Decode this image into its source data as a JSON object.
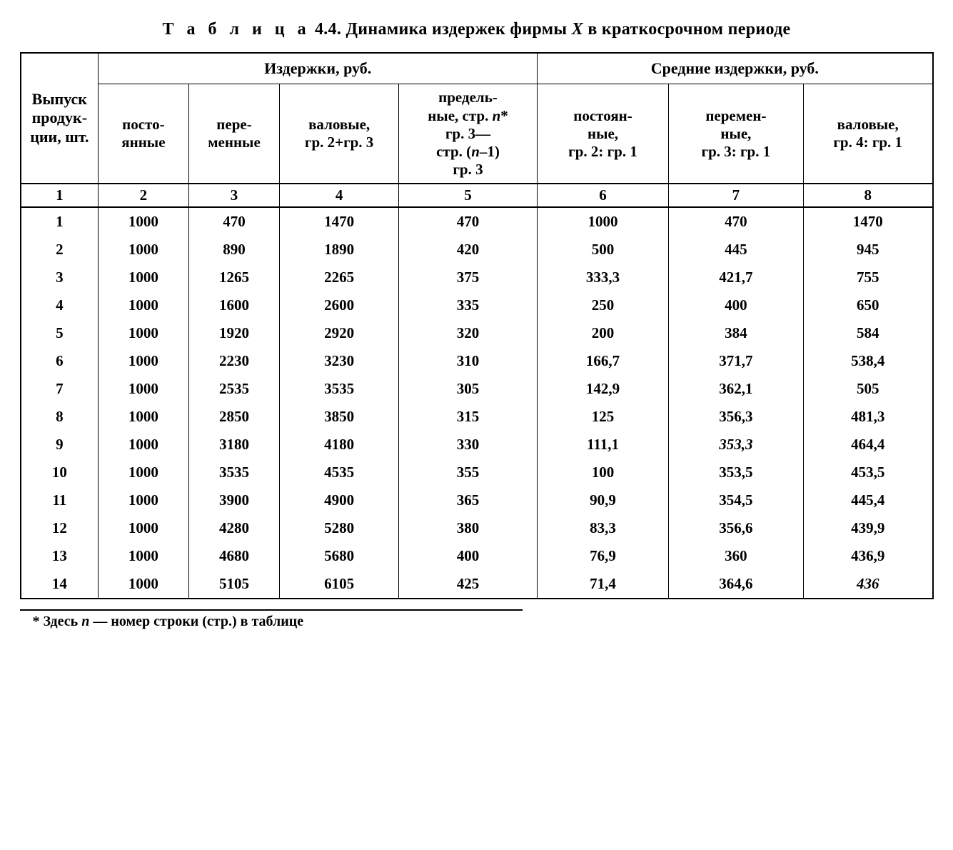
{
  "caption": {
    "label_spaced": "Т а б л и ц а",
    "number": "4.4.",
    "rest_before": "Динамика издержек фирмы",
    "var": "X",
    "rest_after": "в краткосрочном периоде"
  },
  "headers": {
    "col1": "Выпуск продук-\nции, шт.",
    "group_cost": "Издержки, руб.",
    "group_avg": "Средние издержки, руб.",
    "col2": "посто-\nянные",
    "col3": "пере-\nменные",
    "col4": "валовые,\nгр. 2+гр. 3",
    "col5": "предель-\nные, стр. n*\nгр. 3—\nстр. (n–1)\nгр. 3",
    "col6": "постоян-\nные,\nгр. 2: гр. 1",
    "col7": "перемен-\nные,\nгр. 3: гр. 1",
    "col8": "валовые,\nгр. 4: гр. 1",
    "numrow": [
      "1",
      "2",
      "3",
      "4",
      "5",
      "6",
      "7",
      "8"
    ]
  },
  "rows": [
    [
      "1",
      "1000",
      "470",
      "1470",
      "470",
      "1000",
      "470",
      "1470"
    ],
    [
      "2",
      "1000",
      "890",
      "1890",
      "420",
      "500",
      "445",
      "945"
    ],
    [
      "3",
      "1000",
      "1265",
      "2265",
      "375",
      "333,3",
      "421,7",
      "755"
    ],
    [
      "4",
      "1000",
      "1600",
      "2600",
      "335",
      "250",
      "400",
      "650"
    ],
    [
      "5",
      "1000",
      "1920",
      "2920",
      "320",
      "200",
      "384",
      "584"
    ],
    [
      "6",
      "1000",
      "2230",
      "3230",
      "310",
      "166,7",
      "371,7",
      "538,4"
    ],
    [
      "7",
      "1000",
      "2535",
      "3535",
      "305",
      "142,9",
      "362,1",
      "505"
    ],
    [
      "8",
      "1000",
      "2850",
      "3850",
      "315",
      "125",
      "356,3",
      "481,3"
    ],
    [
      "9",
      "1000",
      "3180",
      "4180",
      "330",
      "111,1",
      "353,3",
      "464,4"
    ],
    [
      "10",
      "1000",
      "3535",
      "4535",
      "355",
      "100",
      "353,5",
      "453,5"
    ],
    [
      "11",
      "1000",
      "3900",
      "4900",
      "365",
      "90,9",
      "354,5",
      "445,4"
    ],
    [
      "12",
      "1000",
      "4280",
      "5280",
      "380",
      "83,3",
      "356,6",
      "439,9"
    ],
    [
      "13",
      "1000",
      "4680",
      "5680",
      "400",
      "76,9",
      "360",
      "436,9"
    ],
    [
      "14",
      "1000",
      "5105",
      "6105",
      "425",
      "71,4",
      "364,6",
      "436"
    ]
  ],
  "italic_cells": [
    [
      8,
      6
    ],
    [
      13,
      7
    ]
  ],
  "footnote": {
    "star": "*",
    "before": "Здесь",
    "var": "n",
    "after": "— номер строки (стр.) в таблице"
  },
  "style": {
    "border_color": "#000000",
    "background_color": "#ffffff",
    "font_family": "Times New Roman",
    "body_fontsize": 21,
    "header_fontsize": 22,
    "caption_fontsize": 24
  }
}
